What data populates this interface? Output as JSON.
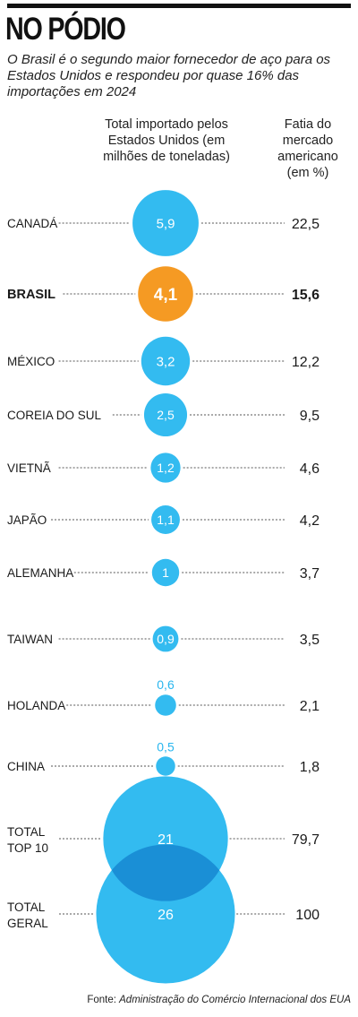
{
  "header": {
    "title": "NO PÓDIO",
    "subtitle": "O Brasil é o segundo maior fornecedor de aço para os Estados Unidos e respondeu por quase 16% das importações em 2024"
  },
  "columns": {
    "imported": "Total importado pelos Estados Unidos (em milhões de toneladas)",
    "share": "Fatia do mercado americano (em %)"
  },
  "source": {
    "prefix": "Fonte: ",
    "name": "Administração do Comércio Internacional dos EUA"
  },
  "colors": {
    "bubble": "#33bbf0",
    "highlight": "#f59a23",
    "overlap": "#1a8fd6",
    "leader": "#555555"
  },
  "chart_data": {
    "type": "bubble",
    "title": "NO PÓDIO",
    "series": [
      {
        "name": "Total importado pelos Estados Unidos (em milhões de toneladas)",
        "unit": "milhões de toneladas"
      },
      {
        "name": "Fatia do mercado americano (em %)",
        "unit": "%"
      }
    ],
    "rows": [
      {
        "label": "CANADÁ",
        "value": 5.9,
        "value_label": "5,9",
        "share": 22.5,
        "share_label": "22,5",
        "highlight": false
      },
      {
        "label": "BRASIL",
        "value": 4.1,
        "value_label": "4,1",
        "share": 15.6,
        "share_label": "15,6",
        "highlight": true
      },
      {
        "label": "MÉXICO",
        "value": 3.2,
        "value_label": "3,2",
        "share": 12.2,
        "share_label": "12,2",
        "highlight": false
      },
      {
        "label": "COREIA DO SUL",
        "value": 2.5,
        "value_label": "2,5",
        "share": 9.5,
        "share_label": "9,5",
        "highlight": false
      },
      {
        "label": "VIETNÃ",
        "value": 1.2,
        "value_label": "1,2",
        "share": 4.6,
        "share_label": "4,6",
        "highlight": false
      },
      {
        "label": "JAPÃO",
        "value": 1.1,
        "value_label": "1,1",
        "share": 4.2,
        "share_label": "4,2",
        "highlight": false
      },
      {
        "label": "ALEMANHA",
        "value": 1.0,
        "value_label": "1",
        "share": 3.7,
        "share_label": "3,7",
        "highlight": false
      },
      {
        "label": "TAIWAN",
        "value": 0.9,
        "value_label": "0,9",
        "share": 3.5,
        "share_label": "3,5",
        "highlight": false
      },
      {
        "label": "HOLANDA",
        "value": 0.6,
        "value_label": "0,6",
        "share": 2.1,
        "share_label": "2,1",
        "highlight": false
      },
      {
        "label": "CHINA",
        "value": 0.5,
        "value_label": "0,5",
        "share": 1.8,
        "share_label": "1,8",
        "highlight": false
      }
    ],
    "totals": [
      {
        "label_lines": [
          "TOTAL",
          "TOP 10"
        ],
        "value": 21,
        "value_label": "21",
        "share": 79.7,
        "share_label": "79,7"
      },
      {
        "label_lines": [
          "TOTAL",
          "GERAL"
        ],
        "value": 26,
        "value_label": "26",
        "share": 100,
        "share_label": "100"
      }
    ]
  }
}
